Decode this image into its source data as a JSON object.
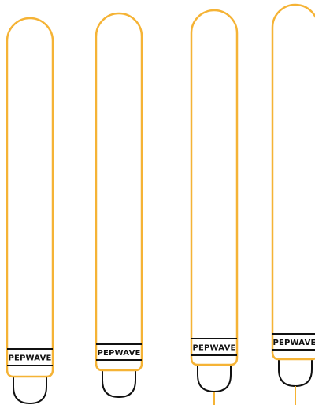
{
  "colors": {
    "antenna_outline": "#F5B335",
    "base_outline": "#111111",
    "background": "#ffffff"
  },
  "antennas": [
    {
      "brand": "PEPWAVE",
      "connector": "none"
    },
    {
      "brand": "PEPWAVE",
      "connector": "none"
    },
    {
      "brand": "PEPWAVE",
      "connector": "pin"
    },
    {
      "brand": "PEPWAVE",
      "connector": "pin"
    }
  ]
}
